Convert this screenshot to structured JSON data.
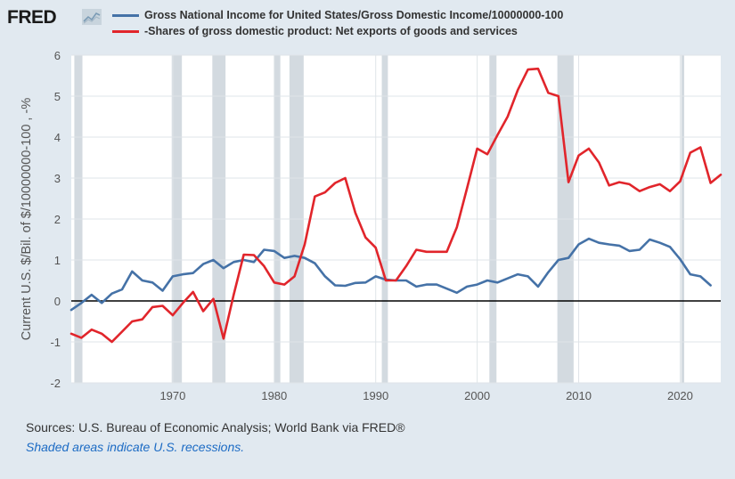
{
  "header": {
    "logo": "FRED",
    "legend": [
      {
        "label": "Gross National Income for United States/Gross Domestic Income/10000000-100",
        "color": "#4572a7"
      },
      {
        "label": "-Shares of gross domestic product: Net exports of goods and services",
        "color": "#e1252b"
      }
    ]
  },
  "footer": {
    "sources": "Sources: U.S. Bureau of Economic Analysis; World Bank via FRED®",
    "note": "Shaded areas indicate U.S. recessions."
  },
  "chart_data": {
    "type": "line",
    "ylabel": "Current U.S. $/Bil. of $/10000000-100 , -%",
    "xlim": [
      1960,
      2024
    ],
    "ylim": [
      -2,
      6
    ],
    "yticks": [
      "-2",
      "-1",
      "0",
      "1",
      "2",
      "3",
      "4",
      "5",
      "6"
    ],
    "xticks": [
      "1970",
      "1980",
      "1990",
      "2000",
      "2010",
      "2020"
    ],
    "recessions": [
      [
        1960.3,
        1961.1
      ],
      [
        1969.9,
        1970.9
      ],
      [
        1973.9,
        1975.2
      ],
      [
        1980.0,
        1980.6
      ],
      [
        1981.5,
        1982.9
      ],
      [
        1990.6,
        1991.2
      ],
      [
        2001.2,
        2001.9
      ],
      [
        2007.9,
        2009.5
      ],
      [
        2020.1,
        2020.4
      ]
    ],
    "x": [
      1960,
      1961,
      1962,
      1963,
      1964,
      1965,
      1966,
      1967,
      1968,
      1969,
      1970,
      1971,
      1972,
      1973,
      1974,
      1975,
      1976,
      1977,
      1978,
      1979,
      1980,
      1981,
      1982,
      1983,
      1984,
      1985,
      1986,
      1987,
      1988,
      1989,
      1990,
      1991,
      1992,
      1993,
      1994,
      1995,
      1996,
      1997,
      1998,
      1999,
      2000,
      2001,
      2002,
      2003,
      2004,
      2005,
      2006,
      2007,
      2008,
      2009,
      2010,
      2011,
      2012,
      2013,
      2014,
      2015,
      2016,
      2017,
      2018,
      2019,
      2020,
      2021,
      2022,
      2023,
      2024
    ],
    "series": [
      {
        "name": "Gross National Income for United States/Gross Domestic Income/10000000-100",
        "color": "#4572a7",
        "values": [
          -0.22,
          -0.05,
          0.15,
          -0.05,
          0.18,
          0.28,
          0.72,
          0.5,
          0.45,
          0.25,
          0.6,
          0.65,
          0.68,
          0.9,
          1.0,
          0.8,
          0.95,
          1.0,
          0.95,
          1.25,
          1.22,
          1.05,
          1.1,
          1.05,
          0.92,
          0.6,
          0.38,
          0.37,
          0.44,
          0.45,
          0.6,
          0.52,
          0.5,
          0.5,
          0.35,
          0.4,
          0.4,
          0.3,
          0.2,
          0.35,
          0.4,
          0.5,
          0.45,
          0.55,
          0.65,
          0.6,
          0.35,
          0.7,
          1.0,
          1.05,
          1.38,
          1.52,
          1.42,
          1.38,
          1.35,
          1.22,
          1.25,
          1.5,
          1.42,
          1.32,
          1.02,
          0.65,
          0.6,
          0.38,
          null
        ]
      },
      {
        "name": "-Shares of gross domestic product: Net exports of goods and services",
        "color": "#e1252b",
        "values": [
          -0.8,
          -0.9,
          -0.7,
          -0.8,
          -1.0,
          -0.75,
          -0.5,
          -0.45,
          -0.15,
          -0.12,
          -0.35,
          -0.05,
          0.22,
          -0.25,
          0.05,
          -0.92,
          0.15,
          1.13,
          1.12,
          0.85,
          0.45,
          0.4,
          0.6,
          1.38,
          2.55,
          2.65,
          2.88,
          3.0,
          2.15,
          1.55,
          1.3,
          0.5,
          0.5,
          0.85,
          1.25,
          1.2,
          1.2,
          1.2,
          1.8,
          2.75,
          3.72,
          3.58,
          4.05,
          4.5,
          5.15,
          5.65,
          5.67,
          5.08,
          5.0,
          2.9,
          3.55,
          3.72,
          3.38,
          2.82,
          2.9,
          2.85,
          2.68,
          2.78,
          2.85,
          2.68,
          2.92,
          3.62,
          3.75,
          2.88,
          3.08
        ]
      }
    ]
  }
}
